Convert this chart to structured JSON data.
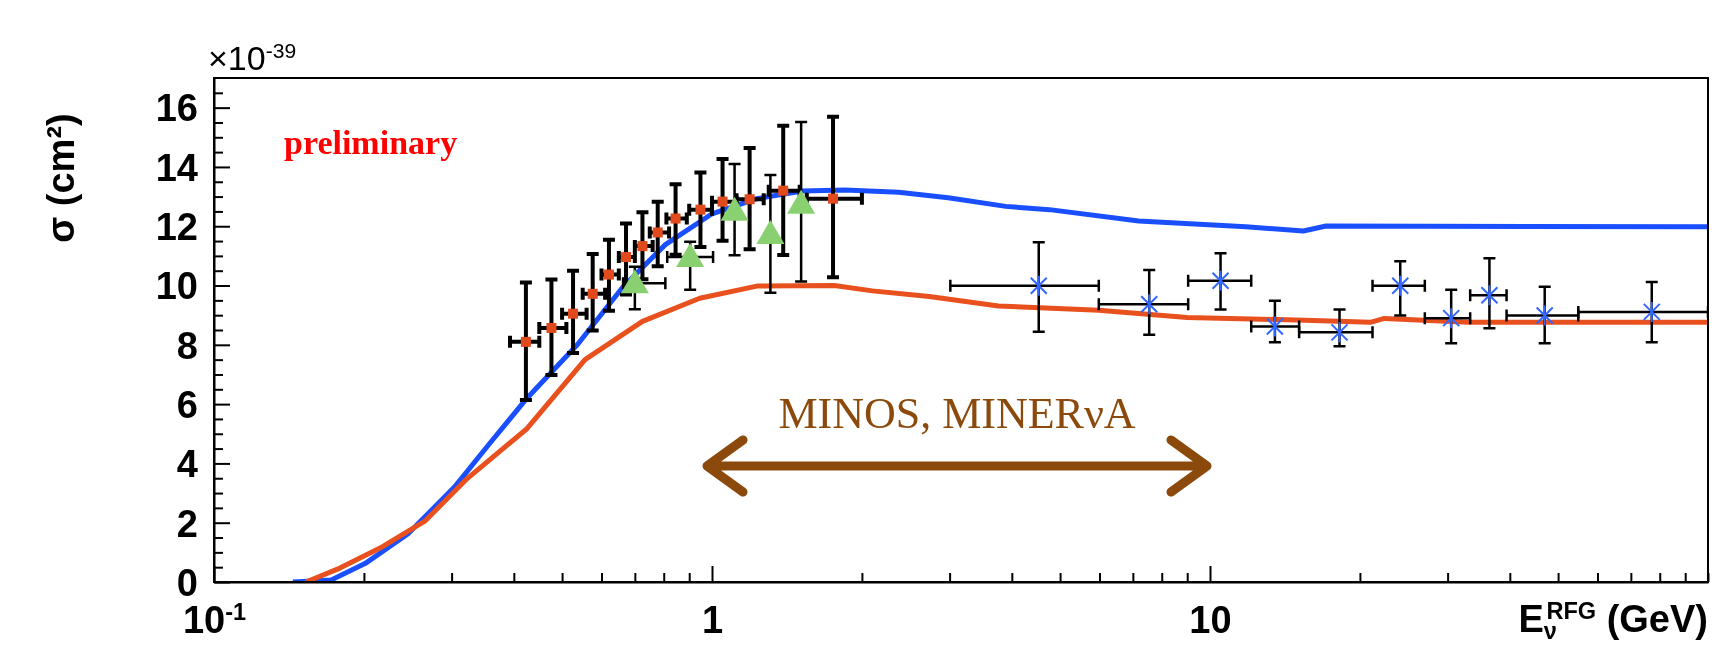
{
  "chart_data": {
    "type": "line",
    "xlabel": "E$_{ν}$$^{RFG}$ (GeV)",
    "ylabel": "σ (cm²)",
    "log": "x",
    "grid": false,
    "xlim": [
      0.1,
      100
    ],
    "ylim": [
      0,
      17
    ],
    "xticks": [
      {
        "value": 0.1,
        "label": "10$^{-1}$"
      },
      {
        "value": 0.2,
        "label": null
      },
      {
        "value": 0.3,
        "label": null
      },
      {
        "value": 0.4,
        "label": null
      },
      {
        "value": 0.5,
        "label": null
      },
      {
        "value": 0.6,
        "label": null
      },
      {
        "value": 0.7,
        "label": null
      },
      {
        "value": 0.8,
        "label": null
      },
      {
        "value": 0.9,
        "label": null
      },
      1,
      {
        "value": 2,
        "label": null
      },
      {
        "value": 3,
        "label": null
      },
      {
        "value": 4,
        "label": null
      },
      {
        "value": 5,
        "label": null
      },
      {
        "value": 6,
        "label": null
      },
      {
        "value": 7,
        "label": null
      },
      {
        "value": 8,
        "label": null
      },
      {
        "value": 9,
        "label": null
      },
      10,
      {
        "value": 20,
        "label": null
      },
      {
        "value": 30,
        "label": null
      },
      {
        "value": 40,
        "label": null
      },
      {
        "value": 50,
        "label": null
      },
      {
        "value": 60,
        "label": null
      },
      {
        "value": 70,
        "label": null
      },
      {
        "value": 80,
        "label": null
      },
      {
        "value": 90,
        "label": null
      },
      {
        "value": 100,
        "label": null
      }
    ],
    "yticks": [
      0,
      {
        "value": 0.5,
        "label": null
      },
      {
        "value": 1,
        "label": null
      },
      {
        "value": 1.5,
        "label": null
      },
      2,
      {
        "value": 2.5,
        "label": null
      },
      {
        "value": 3,
        "label": null
      },
      {
        "value": 3.5,
        "label": null
      },
      4,
      {
        "value": 4.5,
        "label": null
      },
      {
        "value": 5,
        "label": null
      },
      {
        "value": 5.5,
        "label": null
      },
      6,
      {
        "value": 6.5,
        "label": null
      },
      {
        "value": 7,
        "label": null
      },
      {
        "value": 7.5,
        "label": null
      },
      8,
      {
        "value": 8.5,
        "label": null
      },
      {
        "value": 9,
        "label": null
      },
      {
        "value": 9.5,
        "label": null
      },
      10,
      {
        "value": 10.5,
        "label": null
      },
      {
        "value": 11,
        "label": null
      },
      {
        "value": 11.5,
        "label": null
      },
      12,
      {
        "value": 12.5,
        "label": null
      },
      {
        "value": 13,
        "label": null
      },
      {
        "value": 13.5,
        "label": null
      },
      14,
      {
        "value": 14.5,
        "label": null
      },
      {
        "value": 15,
        "label": null
      },
      {
        "value": 15.5,
        "label": null
      },
      16,
      {
        "value": 16.5,
        "label": null
      }
    ],
    "annotations": [
      "×10$^{-39}$",
      "preliminary",
      "MINOS, MINERνA"
    ],
    "series": [
      {
        "color": "#1a4fff",
        "marker": "none",
        "line_style": "solid",
        "x": [
          0.144,
          0.172,
          0.201,
          0.245,
          0.304,
          0.356,
          0.425,
          0.537,
          0.663,
          0.806,
          1.0,
          1.23,
          1.52,
          1.85,
          2.37,
          2.98,
          3.89,
          4.76,
          7.19,
          11.8,
          15.4,
          17.1,
          100
        ],
        "values": [
          0,
          0.07,
          0.62,
          1.62,
          3.2,
          4.63,
          6.2,
          8.01,
          9.96,
          11.38,
          12.42,
          12.93,
          13.19,
          13.22,
          13.15,
          12.96,
          12.67,
          12.56,
          12.18,
          11.98,
          11.84,
          12.01,
          11.98
        ]
      },
      {
        "color": "#e8501e",
        "marker": "none",
        "line_style": "solid",
        "x": [
          0.153,
          0.179,
          0.218,
          0.265,
          0.322,
          0.425,
          0.556,
          0.725,
          0.945,
          1.23,
          1.76,
          2.1,
          2.73,
          3.76,
          5.98,
          9.0,
          14.9,
          21.0,
          22.4,
          33.0,
          100
        ],
        "values": [
          0,
          0.47,
          1.19,
          2.05,
          3.48,
          5.17,
          7.5,
          8.79,
          9.57,
          9.98,
          10.0,
          9.82,
          9.63,
          9.31,
          9.17,
          8.92,
          8.84,
          8.76,
          8.89,
          8.76,
          8.76
        ]
      },
      {
        "type": "scatter",
        "color": "#e04a1c",
        "marker": "square",
        "x": [
          0.423,
          0.476,
          0.526,
          0.576,
          0.621,
          0.672,
          0.725,
          0.778,
          0.845,
          0.948,
          1.05,
          1.19,
          1.39,
          1.75
        ],
        "values": [
          8.1,
          8.57,
          9.05,
          9.72,
          10.37,
          10.96,
          11.33,
          11.79,
          12.26,
          12.56,
          12.83,
          12.91,
          13.2,
          12.93
        ],
        "errors": [
          [
            6.14,
            10.1
          ],
          [
            6.98,
            10.2
          ],
          [
            7.72,
            10.5
          ],
          [
            8.48,
            11.06
          ],
          [
            9.15,
            11.54
          ],
          [
            9.7,
            12.09
          ],
          [
            10.21,
            12.47
          ],
          [
            10.65,
            12.83
          ],
          [
            11.04,
            13.42
          ],
          [
            11.3,
            13.81
          ],
          [
            11.51,
            14.27
          ],
          [
            11.22,
            14.64
          ],
          [
            11.03,
            15.39
          ],
          [
            10.28,
            15.69
          ]
        ],
        "xerrors": [
          [
            0.393,
            0.45
          ],
          [
            0.45,
            0.51
          ],
          [
            0.5,
            0.56
          ],
          [
            0.55,
            0.61
          ],
          [
            0.6,
            0.65
          ],
          [
            0.65,
            0.7
          ],
          [
            0.7,
            0.76
          ],
          [
            0.75,
            0.82
          ],
          [
            0.81,
            0.89
          ],
          [
            0.9,
            1.0
          ],
          [
            1.0,
            1.12
          ],
          [
            1.12,
            1.27
          ],
          [
            1.3,
            1.5
          ],
          [
            1.55,
            2.0
          ]
        ]
      },
      {
        "type": "scatter",
        "color": "#88d070",
        "marker": "triangle",
        "x": [
          0.7,
          0.904,
          1.11,
          1.31,
          1.51
        ],
        "values": [
          10.08,
          10.96,
          12.52,
          11.74,
          12.76
        ],
        "errors": [
          [
            9.2,
            10.63
          ],
          [
            9.86,
            11.48
          ],
          [
            11.02,
            14.1
          ],
          [
            9.76,
            13.73
          ],
          [
            10.14,
            15.52
          ]
        ],
        "xerrors": [
          [
            0.663,
            0.806
          ],
          [
            0.813,
            1.005
          ],
          null,
          null,
          null
        ]
      },
      {
        "type": "scatter",
        "color": "#3366ff",
        "marker": "cross",
        "x": [
          4.53,
          7.55,
          10.5,
          13.5,
          18.2,
          24.1,
          30.5,
          36.4,
          47.0,
          77.1
        ],
        "values": [
          9.99,
          9.37,
          10.16,
          8.62,
          8.42,
          9.99,
          8.9,
          9.67,
          8.99,
          9.11
        ],
        "errors": [
          [
            8.44,
            11.46
          ],
          [
            8.34,
            10.52
          ],
          [
            9.19,
            11.09
          ],
          [
            8.09,
            9.49
          ],
          [
            7.95,
            9.19
          ],
          [
            8.99,
            10.82
          ],
          [
            8.05,
            9.86
          ],
          [
            8.56,
            10.92
          ],
          [
            8.05,
            9.96
          ],
          [
            8.09,
            10.12
          ]
        ],
        "xerrors": [
          [
            3.01,
            5.98
          ],
          [
            5.98,
            9.04
          ],
          [
            9.04,
            12.1
          ],
          [
            12.1,
            15.1
          ],
          [
            15.1,
            21.2
          ],
          [
            21.2,
            27.0
          ],
          [
            27.0,
            33.3
          ],
          [
            33.3,
            39.4
          ],
          [
            39.4,
            54.9
          ],
          [
            54.9,
            100
          ]
        ]
      }
    ]
  }
}
